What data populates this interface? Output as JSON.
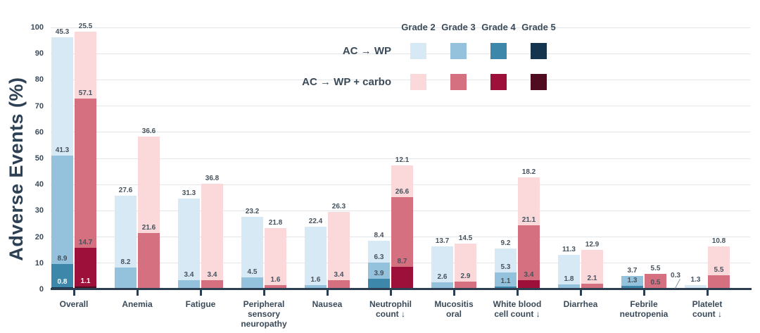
{
  "chart_data": {
    "type": "bar",
    "stacked": true,
    "orientation": "vertical",
    "title": "",
    "ylabel": "Adverse Events (%)",
    "ylim": [
      0,
      100
    ],
    "yticks": [
      0,
      10,
      20,
      30,
      40,
      50,
      60,
      70,
      80,
      90,
      100
    ],
    "grid": true,
    "legend_position": "top-center",
    "grades_order_bottom_to_top": [
      "g5",
      "g4",
      "g3",
      "g2"
    ],
    "legend_grades": [
      "g2",
      "g3",
      "g4",
      "g5"
    ],
    "grade_labels": {
      "g2": "Grade 2",
      "g3": "Grade 3",
      "g4": "Grade 4",
      "g5": "Grade 5"
    },
    "white_label_grades": [
      "g5"
    ],
    "arms": [
      {
        "id": "wp",
        "label": "AC → WP",
        "colors": {
          "g2": "#d8e9f6",
          "g3": "#94c1dc",
          "g4": "#3d87ab",
          "g5": "#15354f"
        }
      },
      {
        "id": "carbo",
        "label": "AC → WP + carbo",
        "colors": {
          "g2": "#fbd8da",
          "g3": "#d4707f",
          "g4": "#9c1039",
          "g5": "#4f0b20"
        }
      }
    ],
    "categories": [
      {
        "label": "Overall",
        "wp": {
          "g5": 0.8,
          "g4": 8.9,
          "g3": 41.3,
          "g2": 45.3
        },
        "carbo": {
          "g5": 1.1,
          "g4": 14.7,
          "g3": 57.1,
          "g2": 25.5
        }
      },
      {
        "label": "Anemia",
        "wp": {
          "g3": 8.2,
          "g2": 27.6
        },
        "carbo": {
          "g3": 21.6,
          "g2": 36.6
        }
      },
      {
        "label": "Fatigue",
        "wp": {
          "g3": 3.4,
          "g2": 31.3
        },
        "carbo": {
          "g3": 3.4,
          "g2": 36.8
        }
      },
      {
        "label": "Peripheral\nsensory\nneuropathy",
        "wp": {
          "g3": 4.5,
          "g2": 23.2
        },
        "carbo": {
          "g3": 1.6,
          "g2": 21.8
        }
      },
      {
        "label": "Nausea",
        "wp": {
          "g3": 1.6,
          "g2": 22.4
        },
        "carbo": {
          "g3": 3.4,
          "g2": 26.3
        }
      },
      {
        "label": "Neutrophil\ncount ↓",
        "wp": {
          "g4": 3.9,
          "g3": 6.3,
          "g2": 8.4
        },
        "carbo": {
          "g4": 8.7,
          "g3": 26.6,
          "g2": 12.1
        }
      },
      {
        "label": "Mucositis\noral",
        "wp": {
          "g3": 2.6,
          "g2": 13.7
        },
        "carbo": {
          "g3": 2.9,
          "g2": 14.5
        }
      },
      {
        "label": "White blood\ncell count ↓",
        "wp": {
          "g4": 1.1,
          "g3": 5.3,
          "g2": 9.2
        },
        "carbo": {
          "g4": 3.4,
          "g3": 21.1,
          "g2": 18.2
        }
      },
      {
        "label": "Diarrhea",
        "wp": {
          "g3": 1.8,
          "g2": 11.3
        },
        "carbo": {
          "g3": 2.1,
          "g2": 12.9
        }
      },
      {
        "label": "Febrile\nneutropenia",
        "wp": {
          "g4": 1.3,
          "g3": 3.7
        },
        "carbo": {
          "g4": 0.5,
          "g3": 5.5
        }
      },
      {
        "label": "Platelet\ncount ↓",
        "wp": {
          "g3": 0.3,
          "g2": 1.3,
          "callout": {
            "grade": "g3",
            "value": 0.3
          }
        },
        "carbo": {
          "g3": 5.5,
          "g2": 10.8
        }
      }
    ]
  }
}
